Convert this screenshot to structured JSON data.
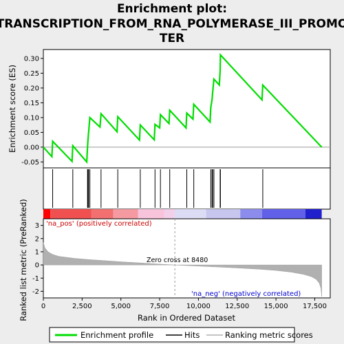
{
  "chart_data": {
    "type": "line",
    "title_lines": [
      "Enrichment plot:",
      "TRANSCRIPTION_FROM_RNA_POLYMERASE_III_PROMO",
      "TER"
    ],
    "top_panel": {
      "ylabel": "Enrichment score (ES)",
      "ylim": [
        -0.07,
        0.33
      ],
      "yticks": [
        -0.05,
        0.0,
        0.05,
        0.1,
        0.15,
        0.2,
        0.25,
        0.3
      ],
      "ytick_labels": [
        "-0.05",
        "0.00",
        "0.05",
        "0.10",
        "0.15",
        "0.20",
        "0.25",
        "0.30"
      ],
      "series": [
        {
          "name": "Enrichment profile",
          "color": "#00dd00",
          "points": [
            [
              0,
              0.0
            ],
            [
              550,
              -0.032
            ],
            [
              600,
              0.02
            ],
            [
              1850,
              -0.048
            ],
            [
              1900,
              0.005
            ],
            [
              2800,
              -0.05
            ],
            [
              2850,
              0.0
            ],
            [
              2880,
              0.025
            ],
            [
              2920,
              0.05
            ],
            [
              3000,
              0.1
            ],
            [
              3650,
              0.068
            ],
            [
              3720,
              0.113
            ],
            [
              4750,
              0.052
            ],
            [
              4800,
              0.103
            ],
            [
              6200,
              0.024
            ],
            [
              6250,
              0.075
            ],
            [
              7150,
              0.025
            ],
            [
              7200,
              0.077
            ],
            [
              7500,
              0.065
            ],
            [
              7550,
              0.11
            ],
            [
              8100,
              0.08
            ],
            [
              8150,
              0.125
            ],
            [
              9200,
              0.065
            ],
            [
              9250,
              0.115
            ],
            [
              9650,
              0.095
            ],
            [
              9700,
              0.145
            ],
            [
              10750,
              0.085
            ],
            [
              10800,
              0.135
            ],
            [
              10880,
              0.16
            ],
            [
              10920,
              0.185
            ],
            [
              11000,
              0.23
            ],
            [
              11350,
              0.21
            ],
            [
              11400,
              0.26
            ],
            [
              11420,
              0.312
            ],
            [
              14100,
              0.16
            ],
            [
              14150,
              0.21
            ],
            [
              17950,
              0.0
            ]
          ]
        }
      ]
    },
    "hits": [
      600,
      1900,
      2850,
      2880,
      2920,
      3000,
      3720,
      4800,
      6250,
      7200,
      7550,
      8150,
      9250,
      9700,
      10800,
      10880,
      10920,
      11000,
      11400,
      11420,
      14150
    ],
    "middle_panel": {
      "bands": [
        {
          "from": 0,
          "to": 450,
          "color": "#ff0000"
        },
        {
          "from": 450,
          "to": 3100,
          "color": "#f05050"
        },
        {
          "from": 3100,
          "to": 4500,
          "color": "#f27070"
        },
        {
          "from": 4500,
          "to": 6100,
          "color": "#f49aa0"
        },
        {
          "from": 6100,
          "to": 7800,
          "color": "#f8c4dc"
        },
        {
          "from": 7800,
          "to": 8480,
          "color": "#f2d0ea"
        },
        {
          "from": 8480,
          "to": 10500,
          "color": "#dcdcf4"
        },
        {
          "from": 10500,
          "to": 12700,
          "color": "#c6c6ee"
        },
        {
          "from": 12700,
          "to": 14100,
          "color": "#8c8cec"
        },
        {
          "from": 14100,
          "to": 16900,
          "color": "#6060e8"
        },
        {
          "from": 16900,
          "to": 17950,
          "color": "#2020cc"
        }
      ]
    },
    "bottom_panel": {
      "ylabel": "Ranked list metric (PreRanked)",
      "ylim": [
        -2.5,
        3.5
      ],
      "yticks": [
        -2,
        -1,
        0,
        1,
        2,
        3
      ],
      "ytick_labels": [
        "-2",
        "-1",
        "0",
        "1",
        "2",
        "3"
      ],
      "metric_color": "#b0b0b0",
      "metric_points": [
        [
          0,
          1.7
        ],
        [
          100,
          1.3
        ],
        [
          300,
          1.0
        ],
        [
          600,
          0.8
        ],
        [
          1000,
          0.65
        ],
        [
          2000,
          0.5
        ],
        [
          3000,
          0.4
        ],
        [
          4000,
          0.32
        ],
        [
          5000,
          0.24
        ],
        [
          6000,
          0.17
        ],
        [
          7000,
          0.1
        ],
        [
          8000,
          0.03
        ],
        [
          8480,
          0.0
        ],
        [
          9000,
          -0.03
        ],
        [
          10000,
          -0.09
        ],
        [
          11000,
          -0.14
        ],
        [
          12000,
          -0.2
        ],
        [
          13000,
          -0.26
        ],
        [
          14000,
          -0.33
        ],
        [
          15000,
          -0.42
        ],
        [
          16000,
          -0.55
        ],
        [
          16800,
          -0.72
        ],
        [
          17300,
          -0.9
        ],
        [
          17600,
          -1.1
        ],
        [
          17800,
          -1.4
        ],
        [
          17900,
          -1.8
        ],
        [
          17950,
          -2.4
        ]
      ],
      "zero_cross": 8480,
      "annotations": {
        "pos_label": "'na_pos' (positively correlated)",
        "neg_label": "'na_neg' (negatively correlated)",
        "zero_label": "Zero cross at 8480"
      }
    },
    "xlabel": "Rank in Ordered Dataset",
    "xlim": [
      0,
      18500
    ],
    "xticks": [
      0,
      2500,
      5000,
      7500,
      10000,
      12500,
      15000,
      17500
    ],
    "xtick_labels": [
      "0",
      "2,500",
      "5,000",
      "7,500",
      "10,000",
      "12,500",
      "15,000",
      "17,500"
    ],
    "legend": {
      "placement": "bottom",
      "entries": [
        {
          "label": "Enrichment profile",
          "color": "#00dd00"
        },
        {
          "label": "Hits",
          "color": "#000000"
        },
        {
          "label": "Ranking metric scores",
          "color": "#b0b0b0"
        }
      ]
    }
  }
}
